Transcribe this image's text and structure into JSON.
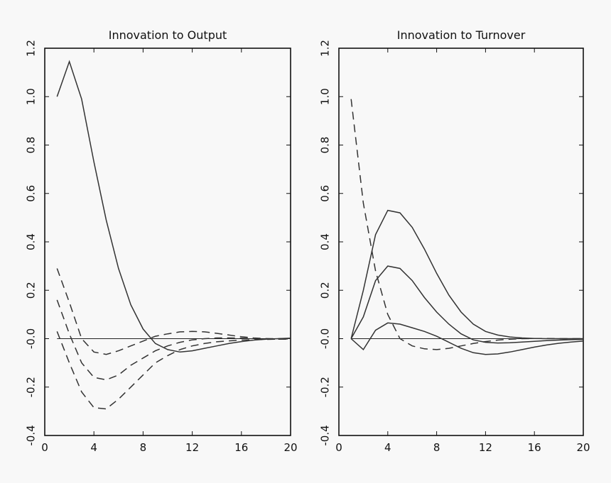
{
  "chart_data": [
    {
      "type": "line",
      "title": "Innovation to Output",
      "xlabel": "",
      "ylabel": "",
      "xlim": [
        0,
        20
      ],
      "ylim": [
        -0.4,
        1.2
      ],
      "xticks": [
        0,
        4,
        8,
        12,
        16,
        20
      ],
      "xtick_labels": [
        "0",
        "4",
        "8",
        "12",
        "16",
        "20"
      ],
      "yticks": [
        -0.4,
        -0.2,
        0.0,
        0.2,
        0.4,
        0.6,
        0.8,
        1.0,
        1.2
      ],
      "ytick_labels": [
        "-0.4",
        "-0.2",
        "-0.0",
        "0.2",
        "0.4",
        "0.6",
        "0.8",
        "1.0",
        "1.2"
      ],
      "zero_line": true,
      "grid": false,
      "series": [
        {
          "style": "solid",
          "x": [
            1,
            2,
            3,
            4,
            5,
            6,
            7,
            8,
            9,
            10,
            11,
            12,
            13,
            14,
            15,
            16,
            17,
            18,
            19,
            20
          ],
          "y": [
            1.0,
            1.145,
            0.99,
            0.73,
            0.49,
            0.29,
            0.14,
            0.04,
            -0.02,
            -0.045,
            -0.055,
            -0.05,
            -0.04,
            -0.03,
            -0.02,
            -0.012,
            -0.006,
            -0.002,
            0.0,
            0.002
          ]
        },
        {
          "style": "dashed",
          "x": [
            1,
            2,
            3,
            4,
            5,
            6,
            7,
            8,
            9,
            10,
            11,
            12,
            13,
            14,
            15,
            16,
            17,
            18,
            19,
            20
          ],
          "y": [
            0.29,
            0.15,
            0.0,
            -0.055,
            -0.065,
            -0.05,
            -0.03,
            -0.01,
            0.01,
            0.02,
            0.028,
            0.03,
            0.028,
            0.022,
            0.015,
            0.008,
            0.003,
            0.0,
            -0.002,
            -0.002
          ]
        },
        {
          "style": "dashed",
          "x": [
            1,
            2,
            3,
            4,
            5,
            6,
            7,
            8,
            9,
            10,
            11,
            12,
            13,
            14,
            15,
            16,
            17,
            18,
            19,
            20
          ],
          "y": [
            0.16,
            0.02,
            -0.1,
            -0.16,
            -0.17,
            -0.15,
            -0.11,
            -0.08,
            -0.05,
            -0.03,
            -0.015,
            -0.005,
            0.0,
            0.003,
            0.003,
            0.002,
            0.001,
            0.0,
            0.0,
            0.0
          ]
        },
        {
          "style": "dashed",
          "x": [
            1,
            2,
            3,
            4,
            5,
            6,
            7,
            8,
            9,
            10,
            11,
            12,
            13,
            14,
            15,
            16,
            17,
            18,
            19,
            20
          ],
          "y": [
            0.03,
            -0.1,
            -0.22,
            -0.285,
            -0.29,
            -0.25,
            -0.2,
            -0.15,
            -0.1,
            -0.07,
            -0.045,
            -0.03,
            -0.02,
            -0.013,
            -0.009,
            -0.006,
            -0.004,
            -0.003,
            -0.002,
            -0.001
          ]
        }
      ]
    },
    {
      "type": "line",
      "title": "Innovation to Turnover",
      "xlabel": "",
      "ylabel": "",
      "xlim": [
        0,
        20
      ],
      "ylim": [
        -0.4,
        1.2
      ],
      "xticks": [
        0,
        4,
        8,
        12,
        16,
        20
      ],
      "xtick_labels": [
        "0",
        "4",
        "8",
        "12",
        "16",
        "20"
      ],
      "yticks": [
        -0.4,
        -0.2,
        0.0,
        0.2,
        0.4,
        0.6,
        0.8,
        1.0,
        1.2
      ],
      "ytick_labels": [
        "-0.4",
        "-0.2",
        "-0.0",
        "0.2",
        "0.4",
        "0.6",
        "0.8",
        "1.0",
        "1.2"
      ],
      "zero_line": true,
      "grid": false,
      "series": [
        {
          "style": "dashed",
          "x": [
            1,
            2,
            3,
            4,
            5,
            6,
            7,
            8,
            9,
            10,
            11,
            12,
            13,
            14,
            15,
            16,
            17,
            18,
            19,
            20
          ],
          "y": [
            0.99,
            0.56,
            0.28,
            0.1,
            0.0,
            -0.03,
            -0.042,
            -0.045,
            -0.04,
            -0.03,
            -0.02,
            -0.012,
            -0.006,
            -0.002,
            0.0,
            0.001,
            0.001,
            0.0,
            0.0,
            0.0
          ]
        },
        {
          "style": "solid",
          "x": [
            1,
            2,
            3,
            4,
            5,
            6,
            7,
            8,
            9,
            10,
            11,
            12,
            13,
            14,
            15,
            16,
            17,
            18,
            19,
            20
          ],
          "y": [
            0.0,
            0.2,
            0.43,
            0.53,
            0.52,
            0.46,
            0.37,
            0.27,
            0.18,
            0.11,
            0.06,
            0.03,
            0.015,
            0.007,
            0.003,
            0.001,
            0.0,
            0.0,
            0.0,
            0.0
          ]
        },
        {
          "style": "solid",
          "x": [
            1,
            2,
            3,
            4,
            5,
            6,
            7,
            8,
            9,
            10,
            11,
            12,
            13,
            14,
            15,
            16,
            17,
            18,
            19,
            20
          ],
          "y": [
            0.0,
            0.09,
            0.24,
            0.3,
            0.29,
            0.24,
            0.17,
            0.11,
            0.06,
            0.02,
            -0.005,
            -0.015,
            -0.018,
            -0.017,
            -0.014,
            -0.011,
            -0.008,
            -0.006,
            -0.004,
            -0.003
          ]
        },
        {
          "style": "solid",
          "x": [
            1,
            2,
            3,
            4,
            5,
            6,
            7,
            8,
            9,
            10,
            11,
            12,
            13,
            14,
            15,
            16,
            17,
            18,
            19,
            20
          ],
          "y": [
            0.0,
            -0.045,
            0.035,
            0.065,
            0.06,
            0.045,
            0.03,
            0.01,
            -0.015,
            -0.04,
            -0.058,
            -0.065,
            -0.063,
            -0.055,
            -0.045,
            -0.035,
            -0.026,
            -0.019,
            -0.014,
            -0.01
          ]
        }
      ]
    }
  ]
}
